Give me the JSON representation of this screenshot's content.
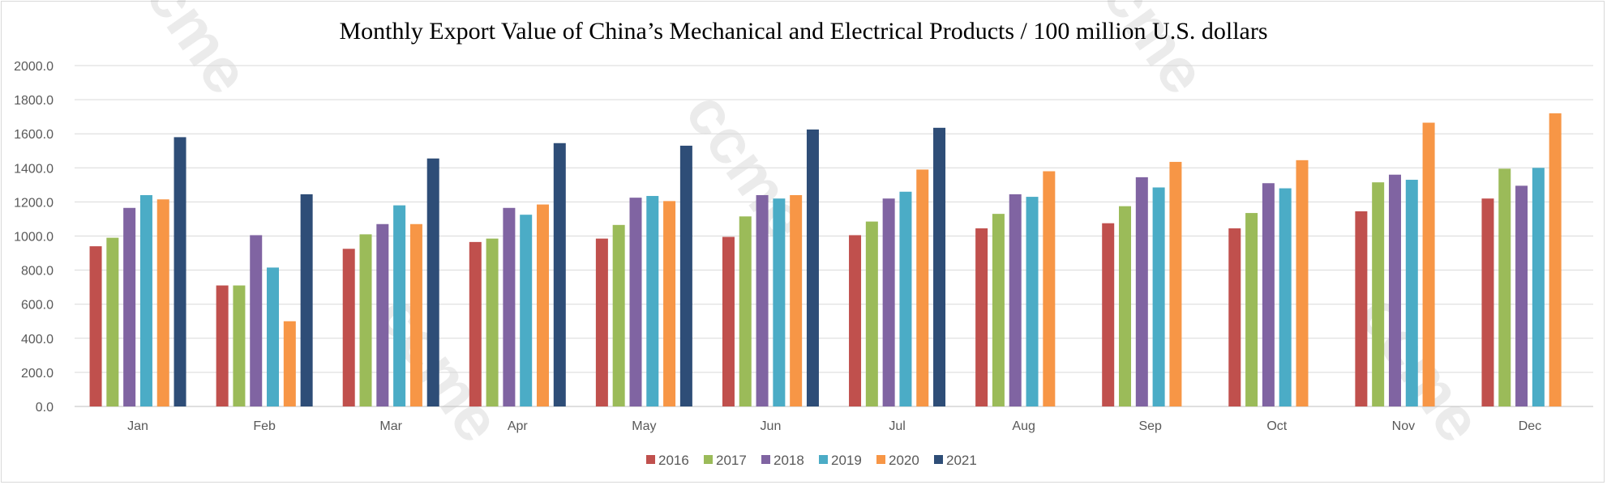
{
  "watermark": "ccme",
  "chart_data": {
    "type": "bar",
    "title": "Monthly Export Value of China’s Mechanical and Electrical Products / 100 million U.S. dollars",
    "xlabel": "",
    "ylabel": "",
    "ylim": [
      0,
      2000
    ],
    "yticks": [
      "0.0",
      "200.0",
      "400.0",
      "600.0",
      "800.0",
      "1000.0",
      "1200.0",
      "1400.0",
      "1600.0",
      "1800.0",
      "2000.0"
    ],
    "grid": true,
    "legend_position": "bottom",
    "categories": [
      "Jan",
      "Feb",
      "Mar",
      "Apr",
      "May",
      "Jun",
      "Jul",
      "Aug",
      "Sep",
      "Oct",
      "Nov",
      "Dec"
    ],
    "series": [
      {
        "name": "2016",
        "color": "#c0504d",
        "values": [
          940,
          710,
          925,
          965,
          985,
          995,
          1005,
          1045,
          1075,
          1045,
          1145,
          1220
        ]
      },
      {
        "name": "2017",
        "color": "#9bbb59",
        "values": [
          990,
          710,
          1010,
          985,
          1065,
          1115,
          1085,
          1130,
          1175,
          1135,
          1315,
          1395
        ]
      },
      {
        "name": "2018",
        "color": "#8064a2",
        "values": [
          1165,
          1005,
          1070,
          1165,
          1225,
          1240,
          1220,
          1245,
          1345,
          1310,
          1360,
          1295
        ]
      },
      {
        "name": "2019",
        "color": "#4bacc6",
        "values": [
          1240,
          815,
          1180,
          1125,
          1235,
          1220,
          1260,
          1230,
          1285,
          1280,
          1330,
          1400
        ]
      },
      {
        "name": "2020",
        "color": "#f79646",
        "values": [
          1215,
          500,
          1070,
          1185,
          1205,
          1240,
          1390,
          1380,
          1435,
          1445,
          1665,
          1720
        ]
      },
      {
        "name": "2021",
        "color": "#2e4d77",
        "values": [
          1580,
          1245,
          1455,
          1545,
          1530,
          1625,
          1635,
          null,
          null,
          null,
          null,
          null
        ]
      }
    ]
  }
}
